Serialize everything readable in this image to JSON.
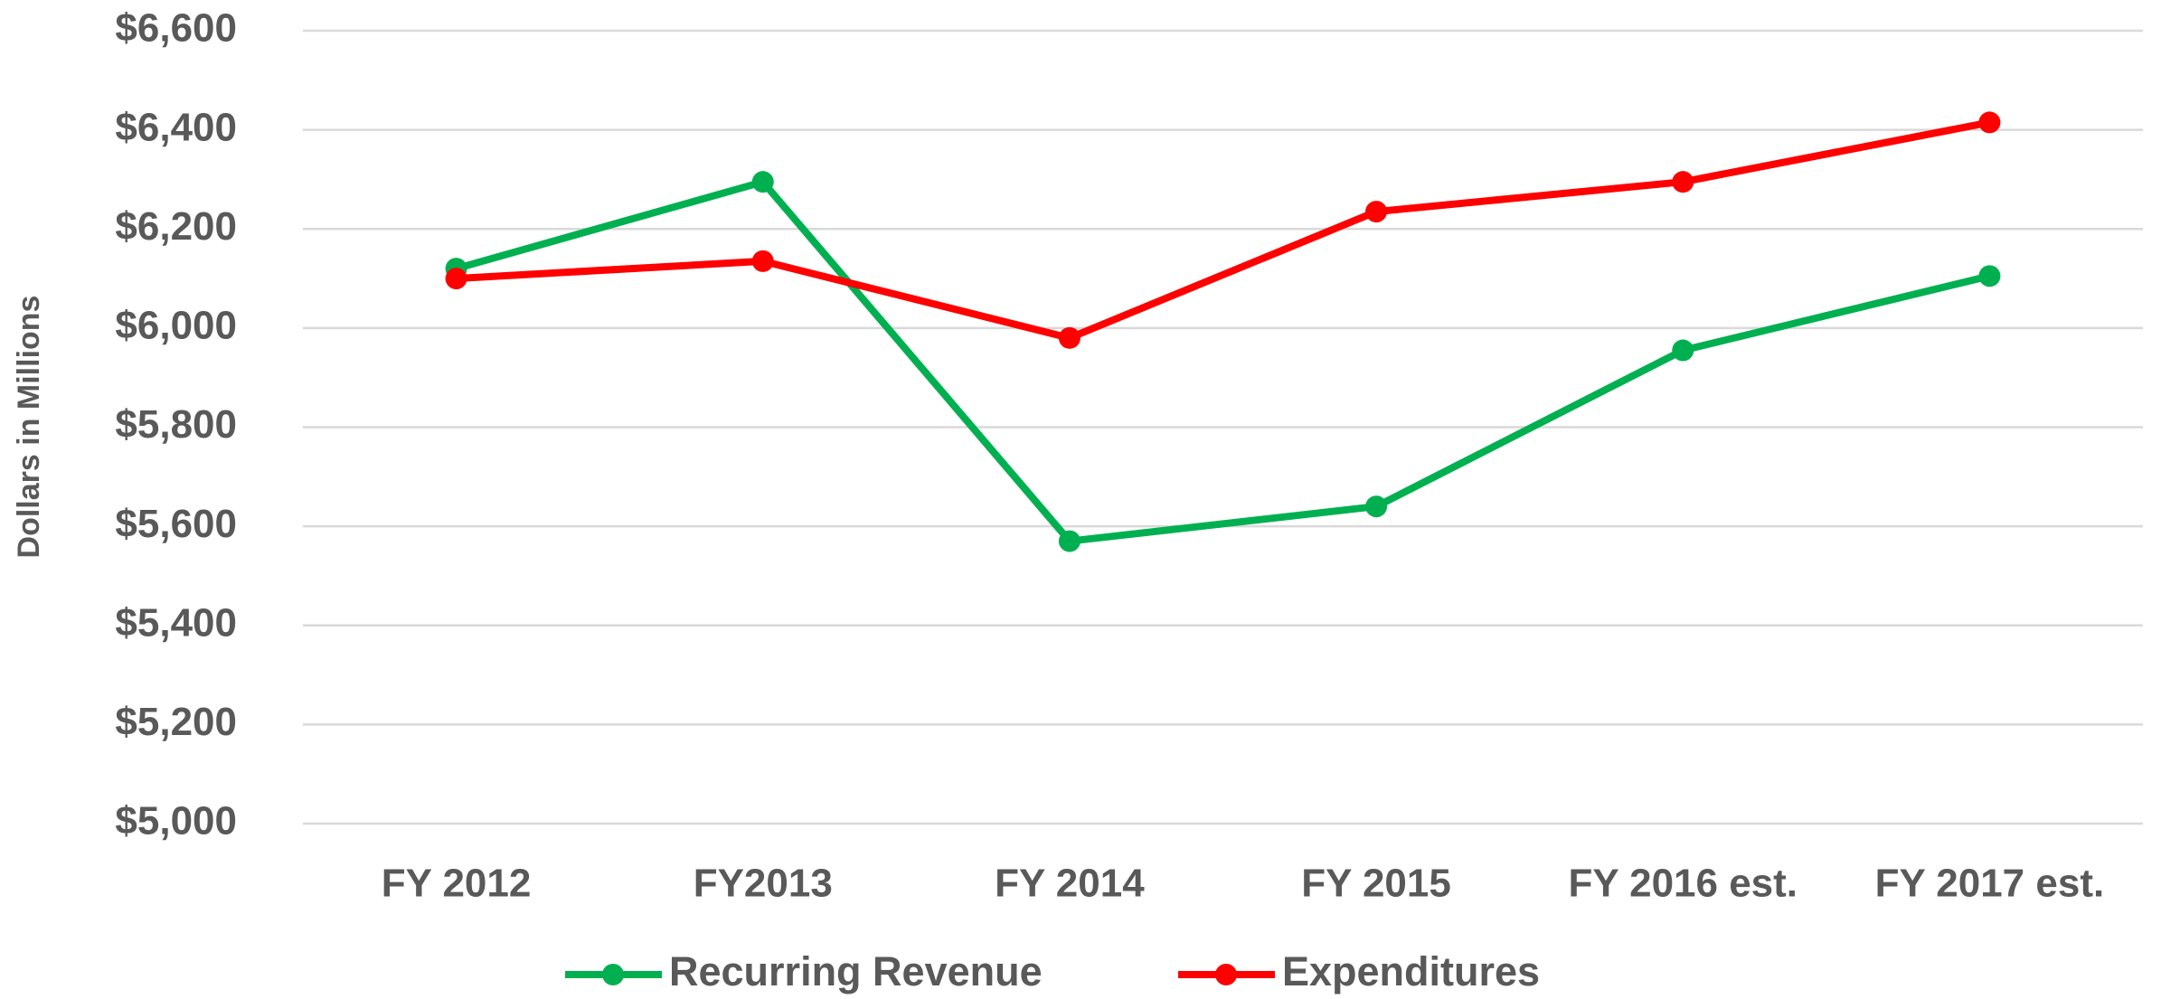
{
  "chart_data": {
    "type": "line",
    "y_axis_label": "Dollars in Millions",
    "categories": [
      "FY 2012",
      "FY2013",
      "FY 2014",
      "FY 2015",
      "FY 2016 est.",
      "FY 2017 est."
    ],
    "series": [
      {
        "name": "Recurring Revenue",
        "color": "#00b050",
        "values": [
          6120,
          6295,
          5570,
          5640,
          5955,
          6105
        ]
      },
      {
        "name": "Expenditures",
        "color": "#ff0000",
        "values": [
          6100,
          6135,
          5980,
          6235,
          6295,
          6415
        ]
      }
    ],
    "ylim": [
      5000,
      6600
    ],
    "yticks": [
      {
        "value": 5000,
        "label": "$5,000"
      },
      {
        "value": 5200,
        "label": "$5,200"
      },
      {
        "value": 5400,
        "label": "$5,400"
      },
      {
        "value": 5600,
        "label": "$5,600"
      },
      {
        "value": 5800,
        "label": "$5,800"
      },
      {
        "value": 6000,
        "label": "$6,000"
      },
      {
        "value": 6200,
        "label": "$6,200"
      },
      {
        "value": 6400,
        "label": "$6,400"
      },
      {
        "value": 6600,
        "label": "$6,600"
      }
    ],
    "grid": true,
    "legend": "bottom"
  }
}
